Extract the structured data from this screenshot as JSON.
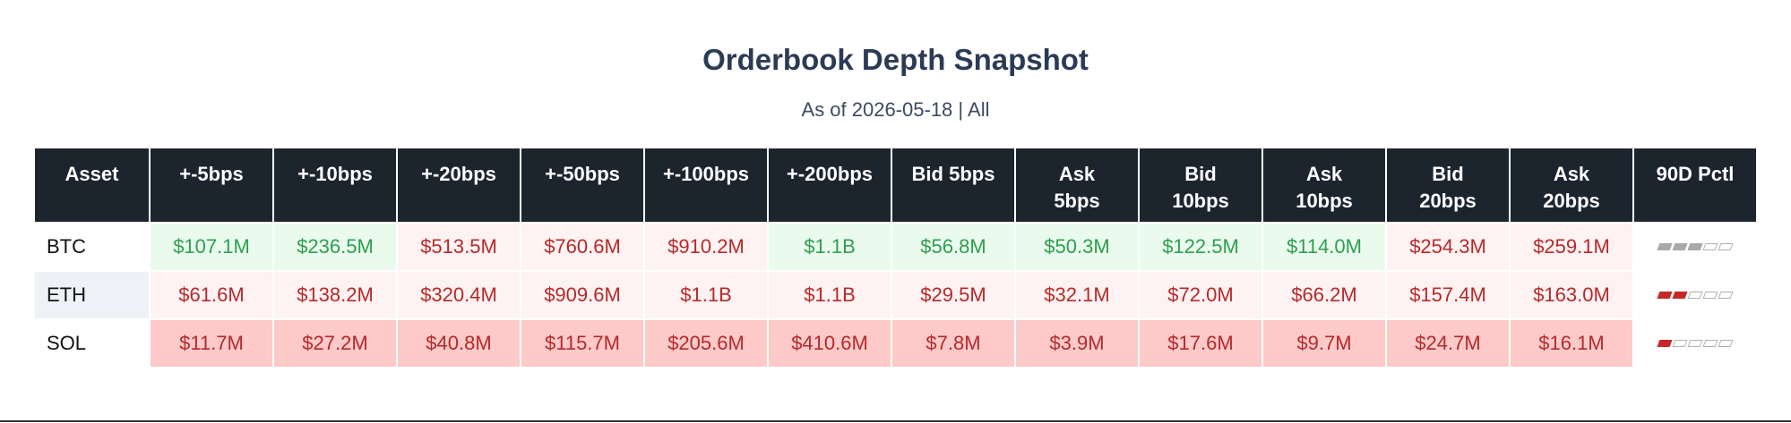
{
  "title": "Orderbook Depth Snapshot",
  "subtitle": "As of 2026-05-18 | All",
  "chart_data": {
    "type": "table",
    "title": "Orderbook Depth Snapshot",
    "subtitle": "As of 2026-05-18 | All",
    "columns": [
      {
        "line1": "Asset",
        "line2": ""
      },
      {
        "line1": "+-5bps",
        "line2": ""
      },
      {
        "line1": "+-10bps",
        "line2": ""
      },
      {
        "line1": "+-20bps",
        "line2": ""
      },
      {
        "line1": "+-50bps",
        "line2": ""
      },
      {
        "line1": "+-100bps",
        "line2": ""
      },
      {
        "line1": "+-200bps",
        "line2": ""
      },
      {
        "line1": "Bid 5bps",
        "line2": ""
      },
      {
        "line1": "Ask",
        "line2": "5bps"
      },
      {
        "line1": "Bid",
        "line2": "10bps"
      },
      {
        "line1": "Ask",
        "line2": "10bps"
      },
      {
        "line1": "Bid",
        "line2": "20bps"
      },
      {
        "line1": "Ask",
        "line2": "20bps"
      },
      {
        "line1": "90D Pctl",
        "line2": ""
      }
    ],
    "rows": [
      {
        "asset": "BTC",
        "cells": [
          {
            "text": "$107.1M",
            "tone": "pos",
            "bg": "#eafbee"
          },
          {
            "text": "$236.5M",
            "tone": "pos",
            "bg": "#eafbee"
          },
          {
            "text": "$513.5M",
            "tone": "neg",
            "bg": "#fff2f2"
          },
          {
            "text": "$760.6M",
            "tone": "neg",
            "bg": "#fff2f2"
          },
          {
            "text": "$910.2M",
            "tone": "neg",
            "bg": "#fff2f2"
          },
          {
            "text": "$1.1B",
            "tone": "pos",
            "bg": "#eafbee"
          },
          {
            "text": "$56.8M",
            "tone": "pos",
            "bg": "#eafbee"
          },
          {
            "text": "$50.3M",
            "tone": "pos",
            "bg": "#eafbee"
          },
          {
            "text": "$122.5M",
            "tone": "pos",
            "bg": "#eafbee"
          },
          {
            "text": "$114.0M",
            "tone": "pos",
            "bg": "#eafbee"
          },
          {
            "text": "$254.3M",
            "tone": "neg",
            "bg": "#fff2f2"
          },
          {
            "text": "$259.1M",
            "tone": "neg",
            "bg": "#fff2f2"
          }
        ],
        "pctl": {
          "filled": 3,
          "total": 5,
          "color": "#a9a9a9"
        }
      },
      {
        "asset": "ETH",
        "cells": [
          {
            "text": "$61.6M",
            "tone": "neg",
            "bg": "#fff2f2"
          },
          {
            "text": "$138.2M",
            "tone": "neg",
            "bg": "#fff2f2"
          },
          {
            "text": "$320.4M",
            "tone": "neg",
            "bg": "#fff2f2"
          },
          {
            "text": "$909.6M",
            "tone": "neg",
            "bg": "#fff2f2"
          },
          {
            "text": "$1.1B",
            "tone": "neg",
            "bg": "#fff2f2"
          },
          {
            "text": "$1.1B",
            "tone": "neg",
            "bg": "#fff2f2"
          },
          {
            "text": "$29.5M",
            "tone": "neg",
            "bg": "#fff2f2"
          },
          {
            "text": "$32.1M",
            "tone": "neg",
            "bg": "#fff2f2"
          },
          {
            "text": "$72.0M",
            "tone": "neg",
            "bg": "#fff2f2"
          },
          {
            "text": "$66.2M",
            "tone": "neg",
            "bg": "#fff2f2"
          },
          {
            "text": "$157.4M",
            "tone": "neg",
            "bg": "#fff2f2"
          },
          {
            "text": "$163.0M",
            "tone": "neg",
            "bg": "#fff2f2"
          }
        ],
        "pctl": {
          "filled": 2,
          "total": 5,
          "color": "#c62828"
        }
      },
      {
        "asset": "SOL",
        "cells": [
          {
            "text": "$11.7M",
            "tone": "neg",
            "bg": "#fdc9c9"
          },
          {
            "text": "$27.2M",
            "tone": "neg",
            "bg": "#fdc9c9"
          },
          {
            "text": "$40.8M",
            "tone": "neg",
            "bg": "#fdc9c9"
          },
          {
            "text": "$115.7M",
            "tone": "neg",
            "bg": "#fdc9c9"
          },
          {
            "text": "$205.6M",
            "tone": "neg",
            "bg": "#fdc9c9"
          },
          {
            "text": "$410.6M",
            "tone": "neg",
            "bg": "#fdc9c9"
          },
          {
            "text": "$7.8M",
            "tone": "neg",
            "bg": "#fdc9c9"
          },
          {
            "text": "$3.9M",
            "tone": "neg",
            "bg": "#fdc9c9"
          },
          {
            "text": "$17.6M",
            "tone": "neg",
            "bg": "#fdc9c9"
          },
          {
            "text": "$9.7M",
            "tone": "neg",
            "bg": "#fdc9c9"
          },
          {
            "text": "$24.7M",
            "tone": "neg",
            "bg": "#fdc9c9"
          },
          {
            "text": "$16.1M",
            "tone": "neg",
            "bg": "#fdc9c9"
          }
        ],
        "pctl": {
          "filled": 1,
          "total": 5,
          "color": "#c62828"
        }
      }
    ]
  },
  "colors": {
    "header_bg": "#1c252e",
    "title": "#2b3a55",
    "positive_text": "#2e9f4f",
    "negative_text": "#b52a2a",
    "positive_bg": "#eafbee",
    "light_negative_bg": "#fff2f2",
    "strong_negative_bg": "#fdc9c9"
  }
}
